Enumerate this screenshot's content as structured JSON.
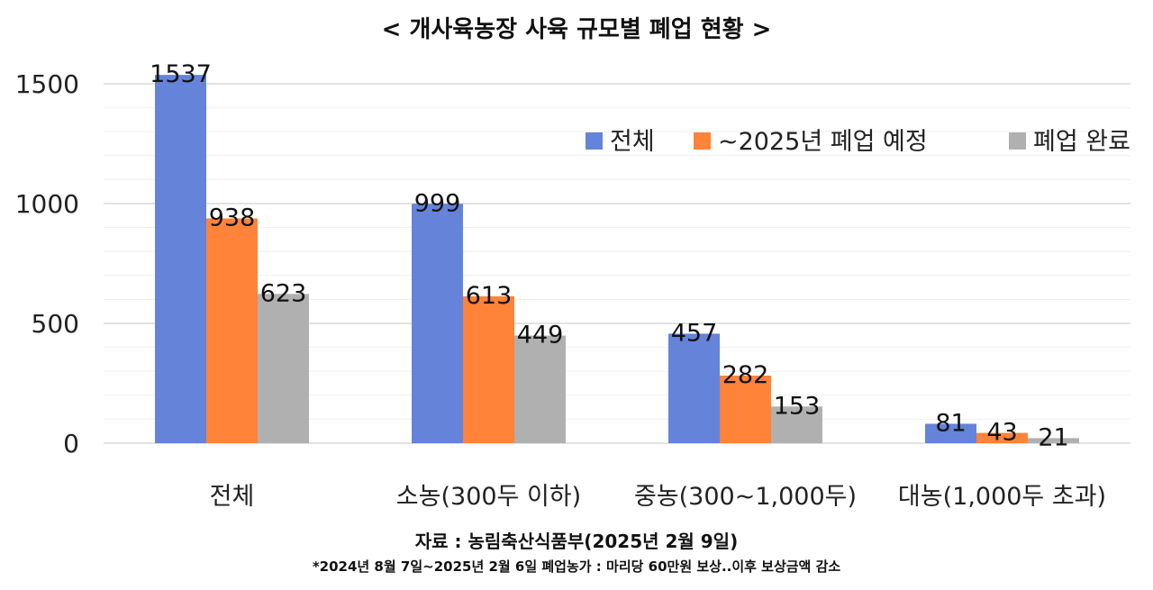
{
  "chart_data": {
    "type": "bar",
    "title": "< 개사육농장 사육 규모별 폐업 현황 >",
    "categories": [
      "전체",
      "소농(300두 이하)",
      "중농(300~1,000두)",
      "대농(1,000두 초과)"
    ],
    "series": [
      {
        "name": "전체",
        "color": "#6483D9",
        "values": [
          1537,
          999,
          457,
          81
        ]
      },
      {
        "name": "~2025년 폐업 예정",
        "color": "#FF8338",
        "values": [
          938,
          613,
          282,
          43
        ]
      },
      {
        "name": "폐업 완료",
        "color": "#B0B0B0",
        "values": [
          623,
          449,
          153,
          21
        ]
      }
    ],
    "yticks": [
      0,
      500,
      1000,
      1500
    ],
    "ylim": [
      0,
      1500
    ],
    "grid": true,
    "legend": "top-right",
    "xlabel": "",
    "ylabel": ""
  },
  "source": "자료 : 농림축산식품부(2025년 2월 9일)",
  "note": "*2024년 8월 7일~2025년 2월 6일 폐업농가 : 마리당 60만원 보상..이후 보상금액 감소"
}
